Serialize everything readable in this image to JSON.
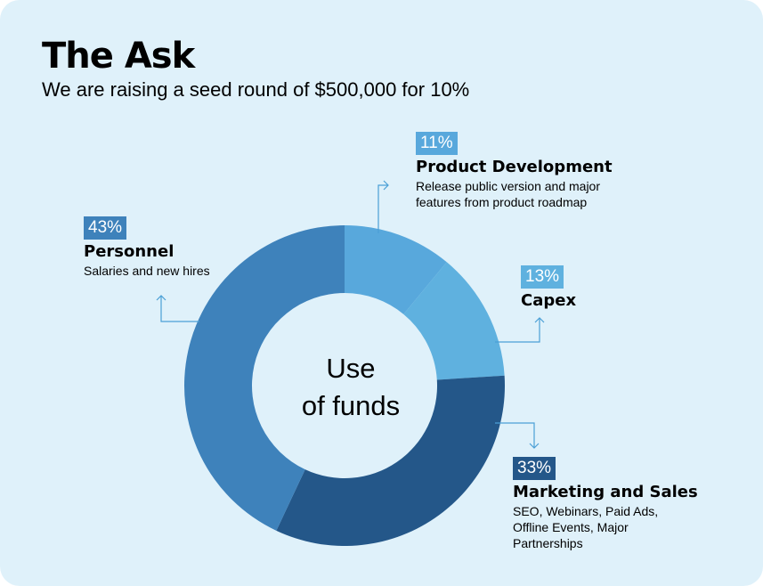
{
  "header": {
    "title": "The Ask",
    "subtitle": "We are raising a seed round of $500,000 for 10%"
  },
  "center": {
    "line1": "Use",
    "line2": "of funds"
  },
  "callouts": {
    "product": {
      "pct": "11%",
      "title": "Product Development",
      "desc1": "Release public version and major",
      "desc2": "features from product roadmap"
    },
    "capex": {
      "pct": "13%",
      "title": "Capex"
    },
    "marketing": {
      "pct": "33%",
      "title": "Marketing and Sales",
      "desc1": "SEO, Webinars, Paid Ads,",
      "desc2": "Offline Events, Major",
      "desc3": "Partnerships"
    },
    "personnel": {
      "pct": "43%",
      "title": "Personnel",
      "desc1": "Salaries and new hires"
    }
  },
  "chart_data": {
    "type": "pie",
    "categories": [
      "Product Development",
      "Capex",
      "Marketing and Sales",
      "Personnel"
    ],
    "values": [
      11,
      13,
      33,
      43
    ],
    "colors": [
      "#58a8dc",
      "#5fb1df",
      "#245789",
      "#3e82bb"
    ],
    "title": "Use of funds"
  }
}
